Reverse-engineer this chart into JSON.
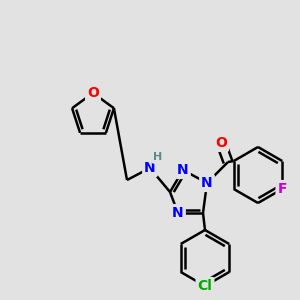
{
  "background_color": "#e2e2e2",
  "atom_colors": {
    "C": "#000000",
    "N": "#0000ff",
    "O": "#ff0000",
    "F": "#cc00cc",
    "Cl": "#00aa00",
    "H": "#5a8a8a"
  },
  "bond_color": "#000000",
  "bond_width": 1.8,
  "font_size": 10,
  "fig_width": 3.0,
  "fig_height": 3.0,
  "dpi": 100
}
